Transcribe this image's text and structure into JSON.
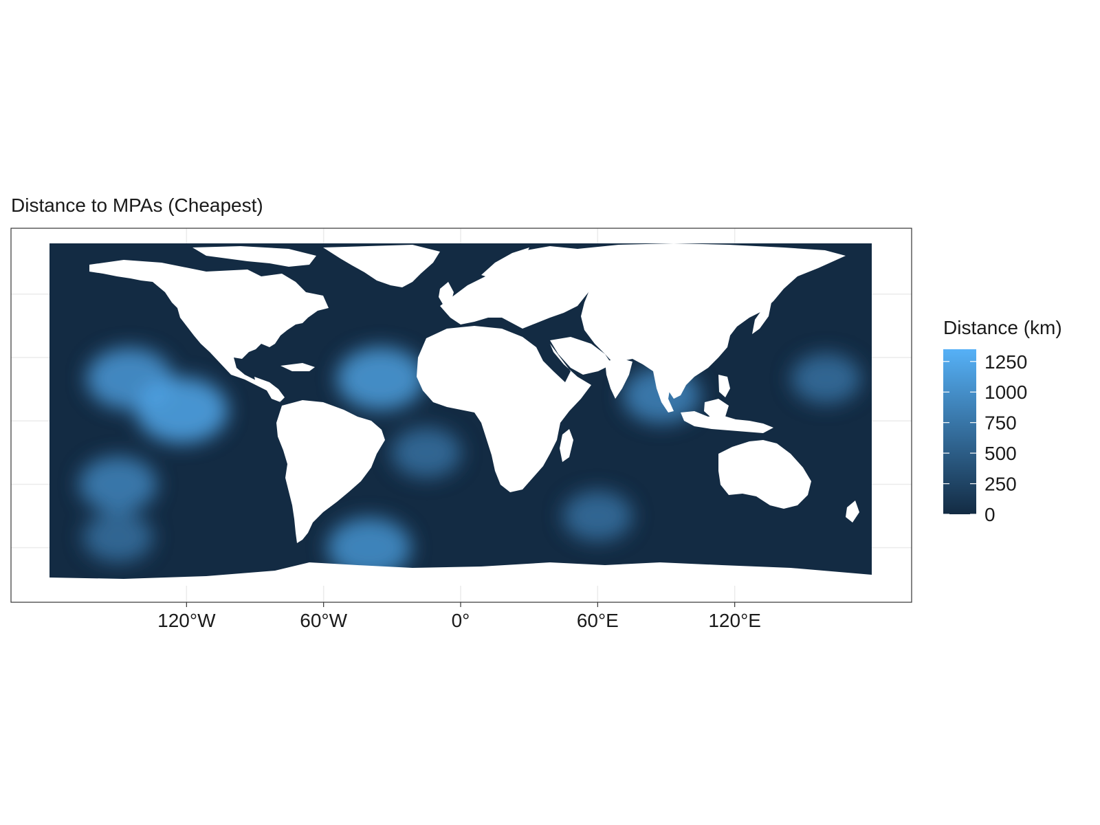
{
  "title": "Distance to MPAs (Cheapest)",
  "x_axis": {
    "ticks": [
      {
        "value": -120,
        "label": "120°W"
      },
      {
        "value": -60,
        "label": "60°W"
      },
      {
        "value": 0,
        "label": "0°"
      },
      {
        "value": 60,
        "label": "60°E"
      },
      {
        "value": 120,
        "label": "120°E"
      }
    ],
    "range": [
      -180,
      180
    ]
  },
  "legend": {
    "title": "Distance (km)",
    "breaks": [
      {
        "value": 1250,
        "label": "1250"
      },
      {
        "value": 1000,
        "label": "1000"
      },
      {
        "value": 750,
        "label": "750"
      },
      {
        "value": 500,
        "label": "500"
      },
      {
        "value": 250,
        "label": "250"
      },
      {
        "value": 0,
        "label": "0"
      }
    ],
    "range": [
      0,
      1350
    ],
    "colors": {
      "low": "#132b43",
      "high": "#56b1f7"
    }
  },
  "colors": {
    "ocean_low": "#132b43",
    "ocean_high": "#56b1f7",
    "land": "#ffffff",
    "grid": "#ebebeb",
    "panel_border": "#333333"
  },
  "hotspots": [
    {
      "name": "north-pacific",
      "lon": -145,
      "lat": 20,
      "km": 1100
    },
    {
      "name": "central-pacific",
      "lon": -122,
      "lat": 5,
      "km": 1250
    },
    {
      "name": "south-pacific",
      "lon": -150,
      "lat": -30,
      "km": 900
    },
    {
      "name": "north-atlantic",
      "lon": -35,
      "lat": 20,
      "km": 1150
    },
    {
      "name": "south-atlantic",
      "lon": -15,
      "lat": -15,
      "km": 700
    },
    {
      "name": "bay-of-bengal",
      "lon": 88,
      "lat": 12,
      "km": 900
    },
    {
      "name": "southern-ocean",
      "lon": -40,
      "lat": -60,
      "km": 1050
    },
    {
      "name": "southern-ocean-east",
      "lon": 60,
      "lat": -45,
      "km": 700
    },
    {
      "name": "west-pacific",
      "lon": 160,
      "lat": 20,
      "km": 700
    },
    {
      "name": "far-south-pacific",
      "lon": -150,
      "lat": -55,
      "km": 700
    }
  ]
}
